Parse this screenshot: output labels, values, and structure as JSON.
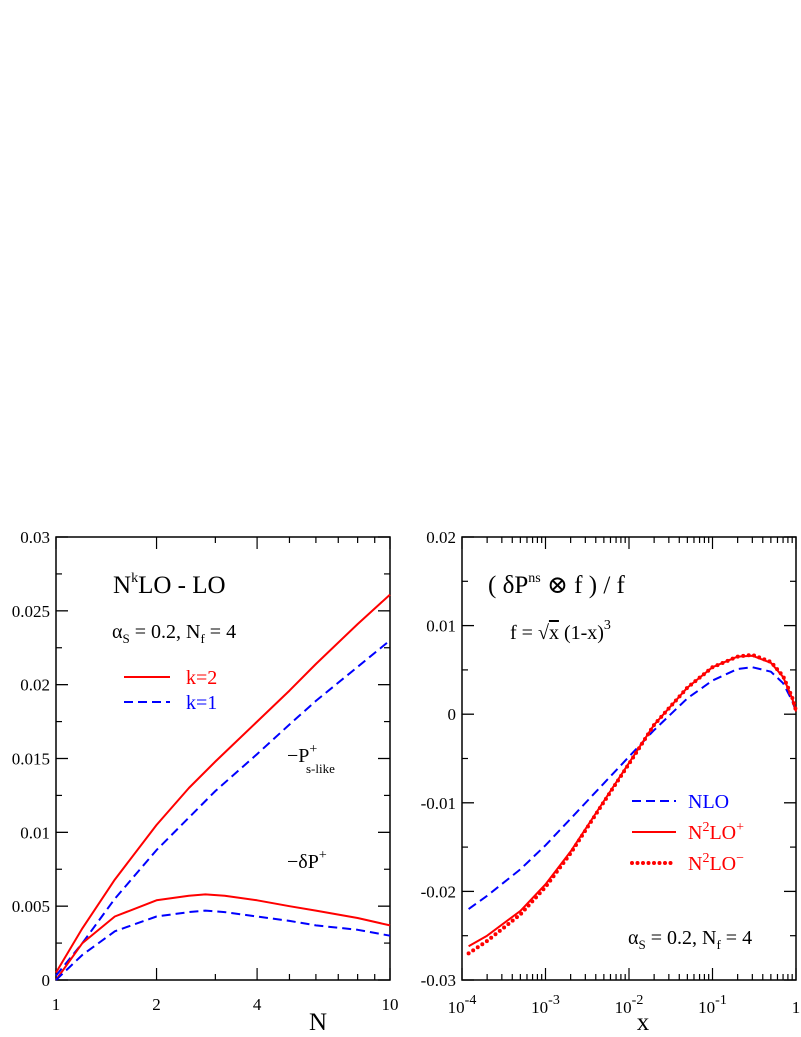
{
  "chart_data": [
    {
      "type": "line",
      "title": "N^kLO - LO",
      "title_parts": {
        "base": "N",
        "sup": "k",
        "rest": "LO - LO"
      },
      "params": {
        "alpha": "α",
        "alpha_sub": "S",
        "alpha_val": " = 0.2, N",
        "nf_sub": "f",
        "nf_val": " = 4"
      },
      "xlabel": "N",
      "ylabel": "",
      "x_scale": "log",
      "xlim": [
        1,
        10
      ],
      "ylim": [
        0,
        0.03
      ],
      "x_ticks": [
        1,
        2,
        4,
        10
      ],
      "x_tick_labels": [
        "1",
        "2",
        "4",
        "10"
      ],
      "y_ticks": [
        0,
        0.005,
        0.01,
        0.015,
        0.02,
        0.025,
        0.03
      ],
      "y_tick_labels": [
        "0",
        "0.005",
        "0.01",
        "0.015",
        "0.02",
        "0.025",
        "0.03"
      ],
      "legend": {
        "placement": "upper-left",
        "entries": [
          {
            "label": "k=2",
            "color": "#ff0000",
            "dash": "solid"
          },
          {
            "label": "k=1",
            "color": "#0000ff",
            "dash": "dashed"
          }
        ]
      },
      "annotations": [
        {
          "id": "ps",
          "minus": "−P",
          "sup": "+",
          "sub": "s-like"
        },
        {
          "id": "dp",
          "minus": "−δP",
          "sup": "+",
          "sub": ""
        }
      ],
      "series": [
        {
          "name": "k=2",
          "group": "ps",
          "color": "#ff0000",
          "dash": "solid",
          "x": [
            1,
            1.2,
            1.5,
            2,
            2.5,
            3,
            4,
            5,
            6,
            8,
            10
          ],
          "y": [
            0.0005,
            0.0035,
            0.0068,
            0.0105,
            0.013,
            0.0148,
            0.0175,
            0.0196,
            0.0214,
            0.0241,
            0.0261
          ]
        },
        {
          "name": "k=1",
          "group": "ps",
          "color": "#0000ff",
          "dash": "dashed",
          "x": [
            1,
            1.2,
            1.5,
            2,
            2.5,
            3,
            4,
            5,
            6,
            8,
            10
          ],
          "y": [
            0.0003,
            0.0025,
            0.0055,
            0.0088,
            0.011,
            0.0128,
            0.0153,
            0.0173,
            0.0189,
            0.0212,
            0.023
          ]
        },
        {
          "name": "k=2",
          "group": "dp",
          "color": "#ff0000",
          "dash": "solid",
          "x": [
            1,
            1.2,
            1.5,
            2,
            2.5,
            2.8,
            3.2,
            4,
            5,
            6,
            8,
            10
          ],
          "y": [
            0,
            0.0025,
            0.0043,
            0.0054,
            0.0057,
            0.0058,
            0.0057,
            0.0054,
            0.005,
            0.0047,
            0.0042,
            0.0037
          ]
        },
        {
          "name": "k=1",
          "group": "dp",
          "color": "#0000ff",
          "dash": "dashed",
          "x": [
            1,
            1.2,
            1.5,
            2,
            2.5,
            2.8,
            3.2,
            4,
            5,
            6,
            8,
            10
          ],
          "y": [
            0,
            0.0017,
            0.0033,
            0.0043,
            0.0046,
            0.0047,
            0.0046,
            0.0043,
            0.004,
            0.0037,
            0.0034,
            0.003
          ]
        }
      ]
    },
    {
      "type": "line",
      "title": "( δP^ns ⊗ f ) / f",
      "title_parts": {
        "open": "( δP",
        "sup": "ns",
        "rest": " ⊗ f ) / f"
      },
      "formula": {
        "lhs": "f = ",
        "root": "√",
        "x": "x",
        "rest": " (1-x)",
        "pow": "3"
      },
      "params": {
        "alpha": "α",
        "alpha_sub": "S",
        "alpha_val": " = 0.2, N",
        "nf_sub": "f",
        "nf_val": " = 4"
      },
      "xlabel": "x",
      "ylabel": "",
      "x_scale": "log",
      "xlim": [
        0.0001,
        1
      ],
      "ylim": [
        -0.03,
        0.02
      ],
      "x_ticks": [
        0.0001,
        0.001,
        0.01,
        0.1,
        1
      ],
      "x_tick_labels": [
        {
          "base": "10",
          "exp": "-4"
        },
        {
          "base": "10",
          "exp": "-3"
        },
        {
          "base": "10",
          "exp": "-2"
        },
        {
          "base": "10",
          "exp": "-1"
        },
        {
          "base": "1",
          "exp": ""
        }
      ],
      "y_ticks": [
        -0.03,
        -0.02,
        -0.01,
        0,
        0.01,
        0.02
      ],
      "y_tick_labels": [
        "-0.03",
        "-0.02",
        "-0.01",
        "0",
        "0.01",
        "0.02"
      ],
      "legend": {
        "placement": "lower-right",
        "entries": [
          {
            "label": "NLO",
            "pre": "",
            "sup_mid": "",
            "post": "NLO",
            "sup_end": "",
            "color": "#0000ff",
            "dash": "dashed"
          },
          {
            "label": "N2LO+",
            "pre": "N",
            "sup_mid": "2",
            "post": "LO",
            "sup_end": "+",
            "color": "#ff0000",
            "dash": "solid"
          },
          {
            "label": "N2LO−",
            "pre": "N",
            "sup_mid": "2",
            "post": "LO",
            "sup_end": "−",
            "color": "#ff0000",
            "dash": "dotted"
          }
        ]
      },
      "series": [
        {
          "name": "NLO",
          "color": "#0000ff",
          "dash": "dashed",
          "x": [
            0.00012,
            0.0002,
            0.0005,
            0.001,
            0.002,
            0.005,
            0.01,
            0.02,
            0.05,
            0.1,
            0.2,
            0.3,
            0.5,
            0.7,
            0.9,
            1
          ],
          "y": [
            -0.022,
            -0.0205,
            -0.0175,
            -0.0148,
            -0.0118,
            -0.0078,
            -0.0048,
            -0.0018,
            0.0018,
            0.0038,
            0.0051,
            0.0053,
            0.0048,
            0.0035,
            0.0015,
            0.0003
          ]
        },
        {
          "name": "N2LO+",
          "color": "#ff0000",
          "dash": "solid",
          "x": [
            0.00012,
            0.0002,
            0.0005,
            0.001,
            0.002,
            0.005,
            0.01,
            0.02,
            0.05,
            0.1,
            0.2,
            0.3,
            0.5,
            0.7,
            0.9,
            1
          ],
          "y": [
            -0.0262,
            -0.025,
            -0.0222,
            -0.0192,
            -0.0155,
            -0.0098,
            -0.0055,
            -0.0012,
            0.003,
            0.0053,
            0.0065,
            0.0066,
            0.0058,
            0.0042,
            0.0018,
            0.0003
          ]
        },
        {
          "name": "N2LO−",
          "color": "#ff0000",
          "dash": "dotted",
          "x": [
            0.00012,
            0.0002,
            0.0005,
            0.001,
            0.002,
            0.005,
            0.01,
            0.02,
            0.05,
            0.1,
            0.2,
            0.3,
            0.5,
            0.7,
            0.9,
            1
          ],
          "y": [
            -0.027,
            -0.0256,
            -0.0226,
            -0.0195,
            -0.0157,
            -0.0099,
            -0.0056,
            -0.0012,
            0.003,
            0.0053,
            0.0065,
            0.0067,
            0.0059,
            0.0043,
            0.0019,
            0.0004
          ]
        }
      ]
    }
  ]
}
